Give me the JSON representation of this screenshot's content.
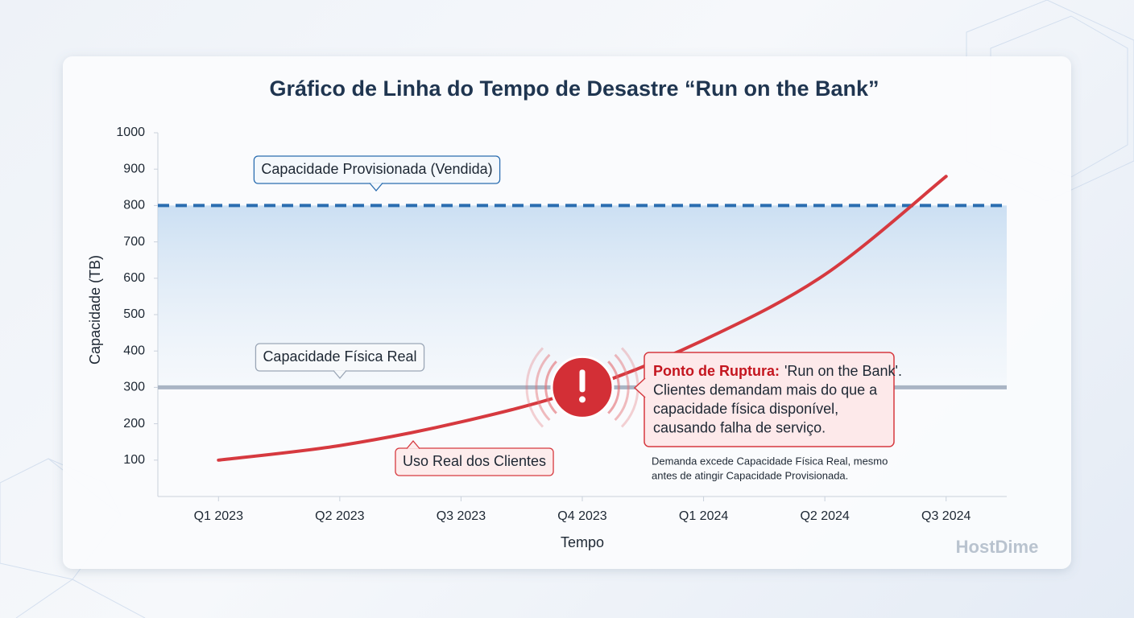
{
  "chart_data": {
    "type": "line",
    "title": "Gráfico de Linha do Tempo de Desastre “Run on the Bank”",
    "x_label": "Tempo",
    "y_label": "Capacidade (TB)",
    "categories": [
      "Q1 2023",
      "Q2 2023",
      "Q3 2023",
      "Q4 2023",
      "Q1 2024",
      "Q2 2024",
      "Q3 2024"
    ],
    "series": [
      {
        "name": "Uso Real dos Clientes",
        "color": "#d6393f",
        "values": [
          100,
          140,
          205,
          295,
          430,
          610,
          880
        ]
      }
    ],
    "reference_lines": [
      {
        "name": "Capacidade Provisionada (Vendida)",
        "value": 800,
        "color": "#2a6db0",
        "style": "dashed"
      },
      {
        "name": "Capacidade Física Real",
        "value": 300,
        "color": "#a9b4c4",
        "style": "solid"
      }
    ],
    "ylim": [
      0,
      1000
    ],
    "yticks": [
      100,
      200,
      300,
      400,
      500,
      600,
      700,
      800,
      900,
      1000
    ],
    "annotation": {
      "x": "Q4 2023",
      "value": 300,
      "label": "Ponto de Ruptura:",
      "lines": [
        "'Run on the Bank'.",
        "Clientes demandam mais do que a",
        "capacidade física disponível,",
        "causando falha de serviço."
      ],
      "note": [
        "Demanda excede Capacidade Física Real, mesmo",
        "antes de atingir Capacidade Provisionada."
      ]
    },
    "watermark": "HostDime"
  }
}
